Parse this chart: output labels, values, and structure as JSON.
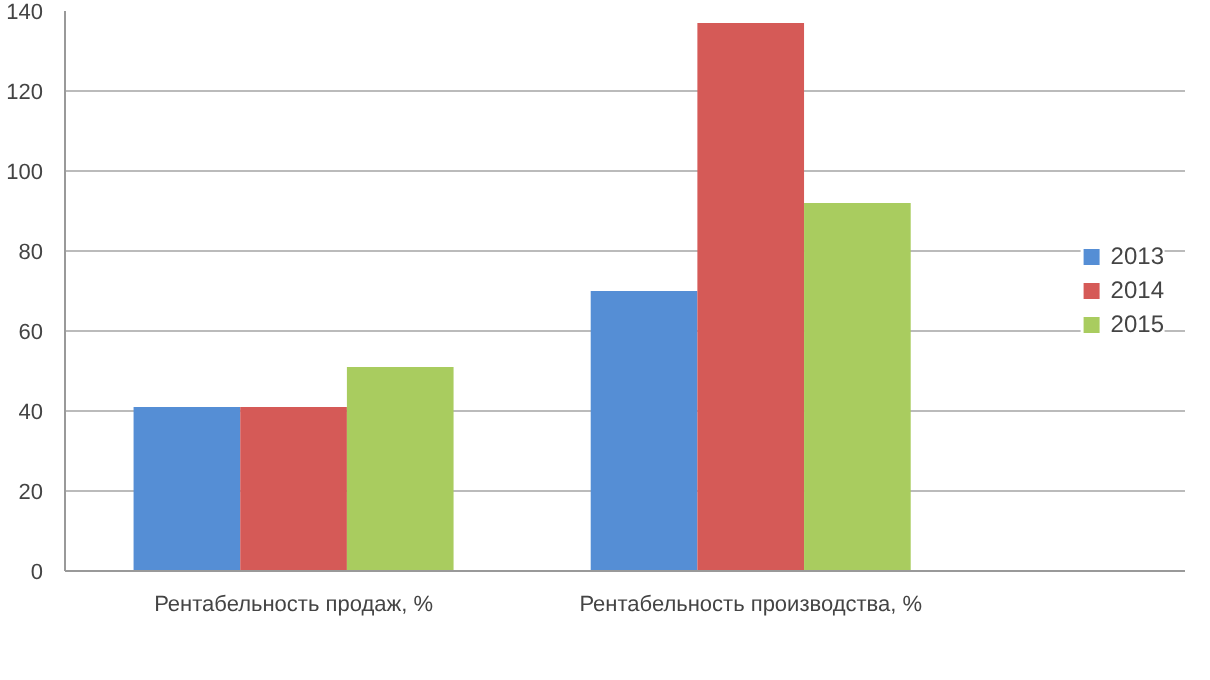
{
  "chart_data": {
    "type": "bar",
    "categories": [
      "Рентабельность продаж, %",
      "Рентабельность производства, %"
    ],
    "series": [
      {
        "name": "2013",
        "color": "#558ed5",
        "values": [
          41,
          70
        ]
      },
      {
        "name": "2014",
        "color": "#d55a57",
        "values": [
          41,
          137
        ]
      },
      {
        "name": "2015",
        "color": "#a9cc5f",
        "values": [
          51,
          92
        ]
      }
    ],
    "ylim": [
      0,
      140
    ],
    "yticks": [
      0,
      20,
      40,
      60,
      80,
      100,
      120,
      140
    ],
    "grid": "y",
    "legend": "right"
  }
}
